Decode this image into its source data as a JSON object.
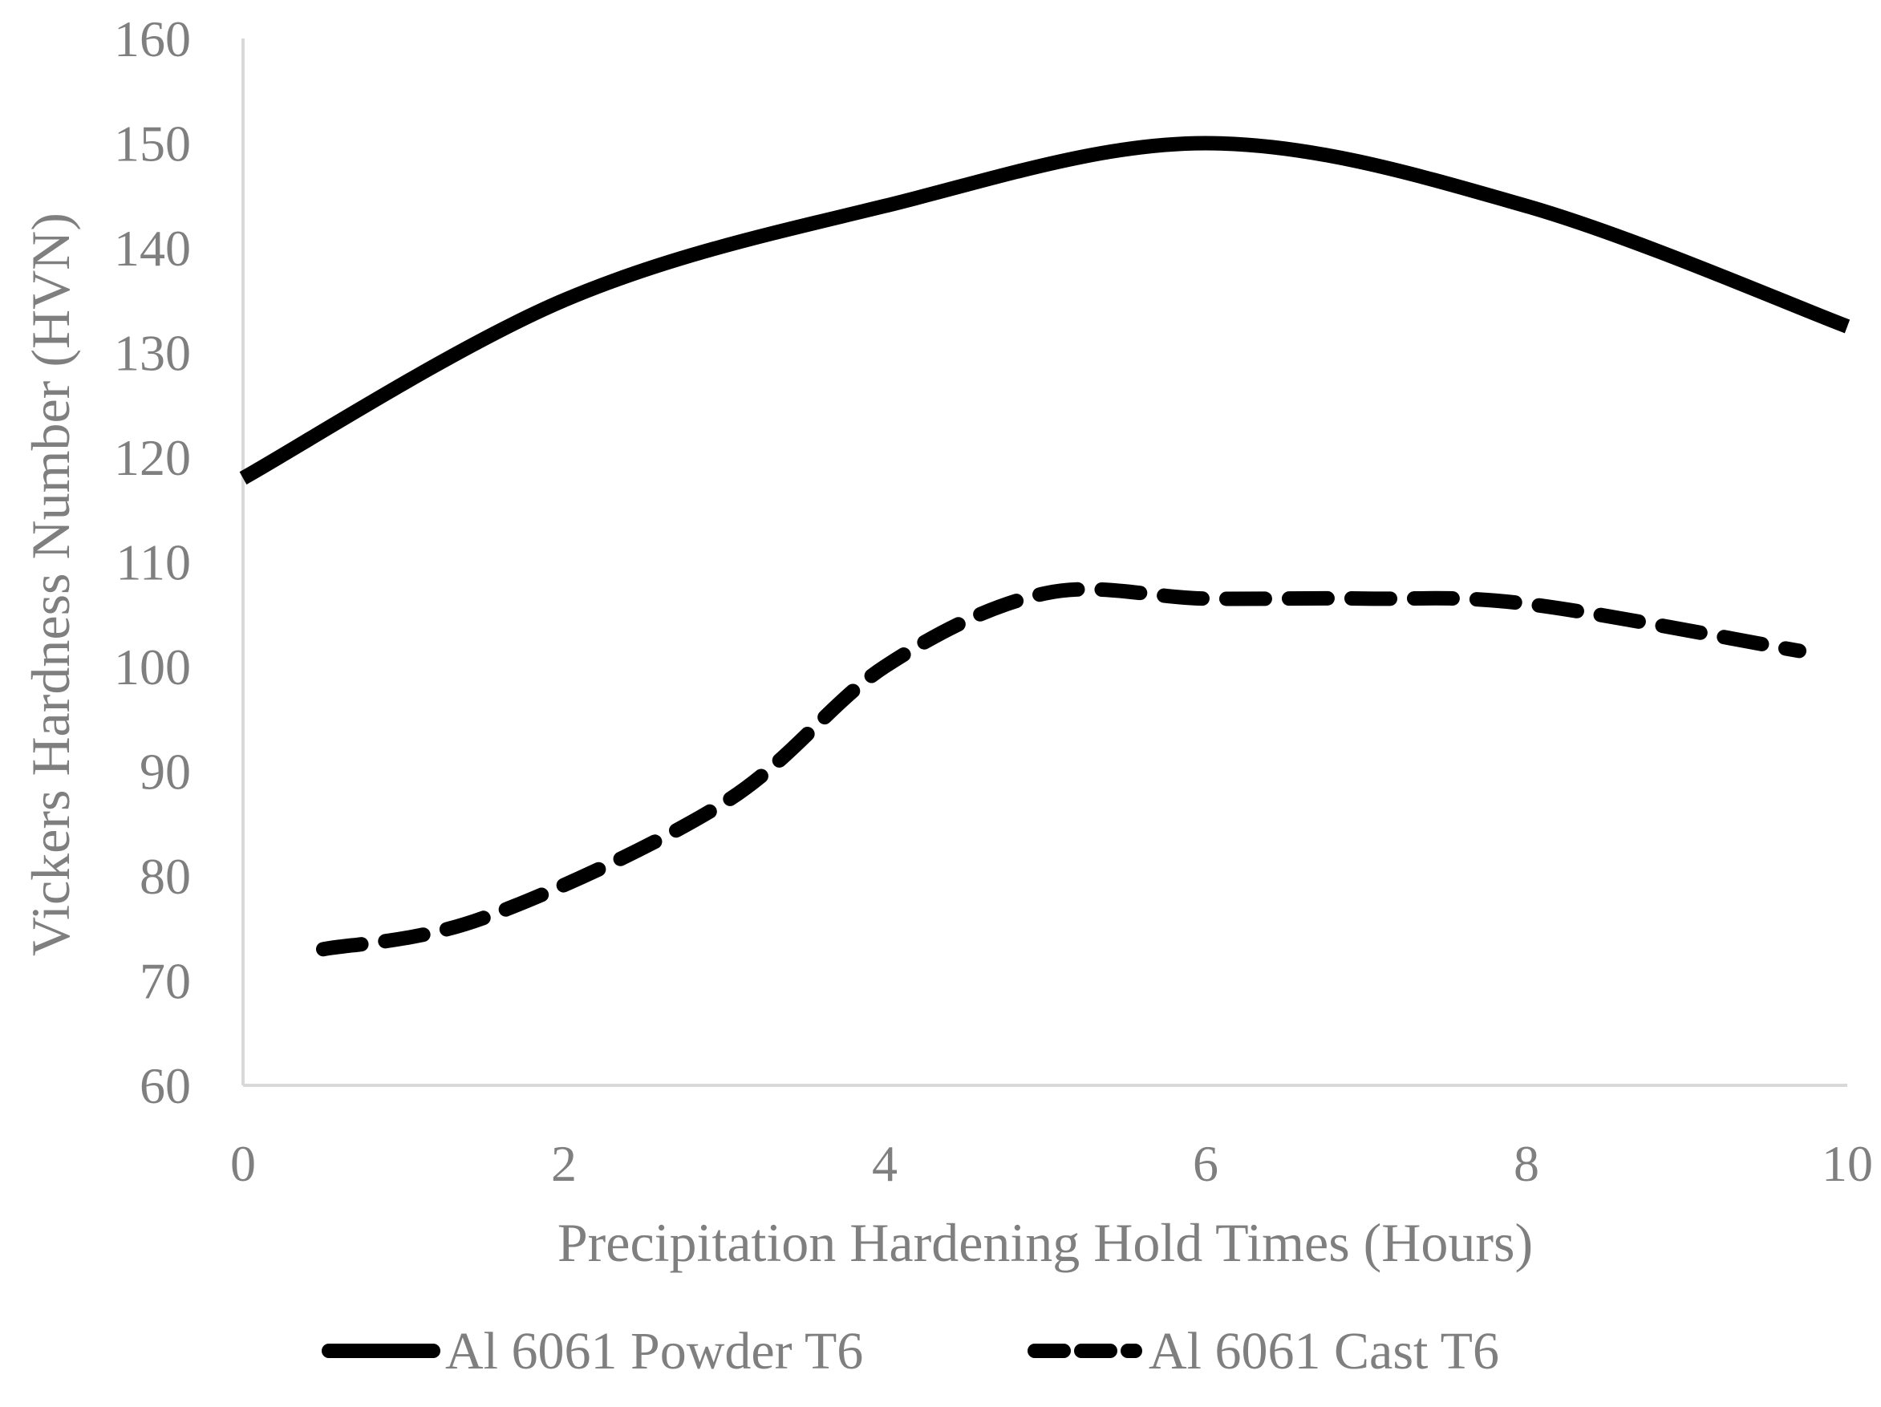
{
  "chart_data": {
    "type": "line",
    "title": "",
    "xlabel": "Precipitation Hardening Hold Times (Hours)",
    "ylabel": "Vickers Hardness Number (HVN)",
    "xlim": [
      0,
      10
    ],
    "ylim": [
      60,
      160
    ],
    "xticks": [
      "0",
      "2",
      "4",
      "6",
      "8",
      "10"
    ],
    "yticks": [
      "60",
      "70",
      "80",
      "90",
      "100",
      "110",
      "120",
      "130",
      "140",
      "150",
      "160"
    ],
    "grid": false,
    "legend_position": "bottom",
    "series": [
      {
        "name": "Al 6061 Powder T6",
        "style": "solid",
        "color": "#000000",
        "x": [
          0,
          2,
          4,
          6,
          8,
          10
        ],
        "y": [
          118,
          135,
          144,
          150,
          144,
          132.5
        ]
      },
      {
        "name": "Al 6061 Cast T6",
        "style": "dashed",
        "color": "#000000",
        "x": [
          0.5,
          1.5,
          3,
          4,
          5,
          6,
          7,
          8,
          9.7
        ],
        "y": [
          73,
          76,
          87,
          100,
          107,
          106.5,
          106.5,
          106,
          101.5
        ]
      }
    ]
  }
}
